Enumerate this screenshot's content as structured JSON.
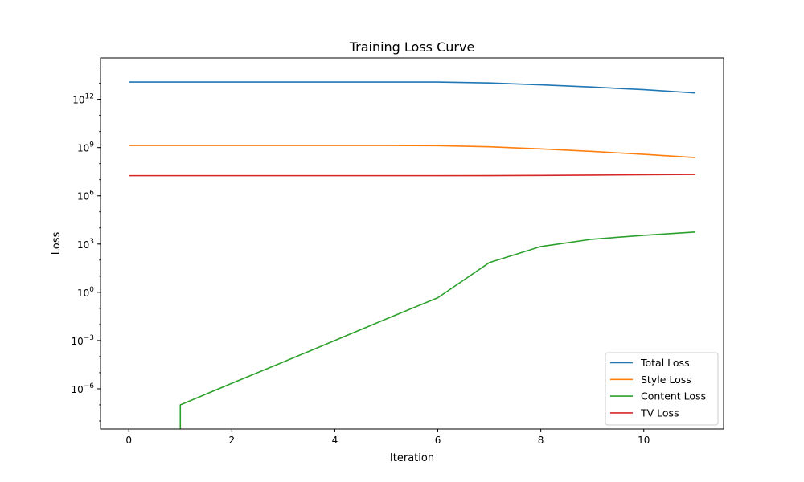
{
  "chart_data": {
    "type": "line",
    "title": "Training Loss Curve",
    "xlabel": "Iteration",
    "ylabel": "Loss",
    "yscale": "log",
    "xlim": [
      -0.55,
      11.55
    ],
    "ylim_exp": [
      -8.5,
      14.58
    ],
    "grid": false,
    "legend_position": "lower-right",
    "x_ticks": [
      0,
      2,
      4,
      6,
      8,
      10
    ],
    "y_ticks": [
      {
        "exp": 12,
        "label": "10",
        "sup": "12"
      },
      {
        "exp": 9,
        "label": "10",
        "sup": "9"
      },
      {
        "exp": 6,
        "label": "10",
        "sup": "6"
      },
      {
        "exp": 3,
        "label": "10",
        "sup": "3"
      },
      {
        "exp": 0,
        "label": "10",
        "sup": "0"
      },
      {
        "exp": -3,
        "label": "10",
        "sup": "−3"
      },
      {
        "exp": -6,
        "label": "10",
        "sup": "−6"
      }
    ],
    "series": [
      {
        "name": "Total Loss",
        "color": "#1f77b4",
        "x": [
          0,
          1,
          2,
          3,
          4,
          5,
          6,
          7,
          8,
          9,
          10,
          11
        ],
        "y": [
          12000000000000.0,
          12000000000000.0,
          12000000000000.0,
          12000000000000.0,
          12000000000000.0,
          12000000000000.0,
          12000000000000.0,
          10500000000000.0,
          8000000000000.0,
          5800000000000.0,
          4000000000000.0,
          2500000000000.0
        ]
      },
      {
        "name": "Style Loss",
        "color": "#ff7f0e",
        "x": [
          0,
          1,
          2,
          3,
          4,
          5,
          6,
          7,
          8,
          9,
          10,
          11
        ],
        "y": [
          1350000000.0,
          1350000000.0,
          1350000000.0,
          1350000000.0,
          1350000000.0,
          1350000000.0,
          1320000000.0,
          1120000000.0,
          830000000.0,
          580000000.0,
          380000000.0,
          240000000.0
        ]
      },
      {
        "name": "Content Loss",
        "color": "#2ca02c",
        "x": [
          0,
          1,
          1,
          2,
          3,
          4,
          5,
          6,
          7,
          8,
          9,
          10,
          11
        ],
        "y": [
          1e-10,
          1e-10,
          1e-07,
          2.2e-06,
          4.6e-05,
          0.001,
          0.022,
          0.46,
          70,
          700,
          2000,
          3500,
          5600
        ]
      },
      {
        "name": "TV Loss",
        "color": "#d62728",
        "x": [
          0,
          1,
          2,
          3,
          4,
          5,
          6,
          7,
          8,
          9,
          10,
          11
        ],
        "y": [
          18000000.0,
          18000000.0,
          18000000.0,
          18000000.0,
          18000000.0,
          18000000.0,
          18000000.0,
          18200000.0,
          18600000.0,
          19500000.0,
          20500000.0,
          21500000.0
        ]
      }
    ]
  }
}
